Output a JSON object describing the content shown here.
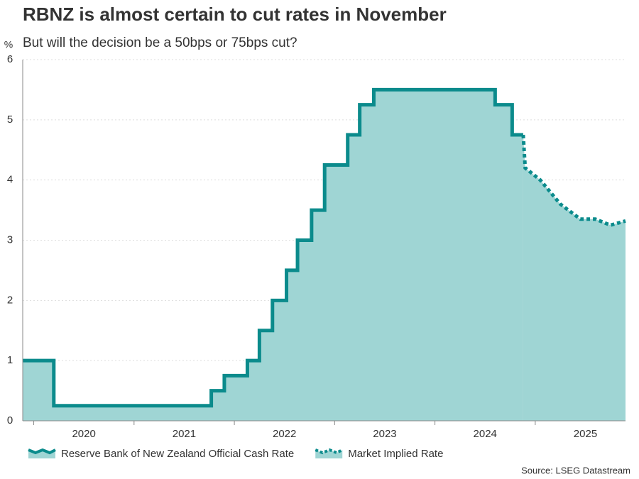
{
  "chart_data": {
    "type": "step-area",
    "title": "RBNZ is almost certain to cut rates in November",
    "subtitle": "But will the decision be a 50bps or 75bps cut?",
    "y_unit": "%",
    "source": "Source: LSEG Datastream",
    "xlim": [
      2019.89,
      2025.9
    ],
    "xticks": [
      2020,
      2021,
      2022,
      2023,
      2024,
      2025
    ],
    "ylim": [
      0,
      6
    ],
    "yticks": [
      0,
      1,
      2,
      3,
      4,
      5,
      6
    ],
    "grid": true,
    "fill_color": "#9fd5d4",
    "series": [
      {
        "name": "Reserve Bank of New Zealand Official Cash Rate",
        "color": "#0b8b8c",
        "line_style": "solid",
        "x": [
          2019.89,
          2020.2,
          2020.2,
          2021.77,
          2021.77,
          2021.9,
          2021.9,
          2022.13,
          2022.13,
          2022.25,
          2022.25,
          2022.38,
          2022.38,
          2022.52,
          2022.52,
          2022.63,
          2022.63,
          2022.77,
          2022.77,
          2022.9,
          2022.9,
          2023.13,
          2023.13,
          2023.25,
          2023.25,
          2023.39,
          2023.39,
          2024.6,
          2024.6,
          2024.77,
          2024.77,
          2024.88
        ],
        "values": [
          1,
          1,
          0.25,
          0.25,
          0.5,
          0.5,
          0.75,
          0.75,
          1,
          1,
          1.5,
          1.5,
          2,
          2,
          2.5,
          2.5,
          3,
          3,
          3.5,
          3.5,
          4.25,
          4.25,
          4.75,
          4.75,
          5.25,
          5.25,
          5.5,
          5.5,
          5.25,
          5.25,
          4.75,
          4.75
        ]
      },
      {
        "name": "Market Implied Rate",
        "color": "#0b8b8c",
        "line_style": "dotted",
        "x": [
          2024.88,
          2024.9,
          2025.05,
          2025.25,
          2025.45,
          2025.6,
          2025.75,
          2025.9
        ],
        "values": [
          4.75,
          4.2,
          4.0,
          3.6,
          3.35,
          3.35,
          3.25,
          3.32
        ]
      }
    ]
  }
}
